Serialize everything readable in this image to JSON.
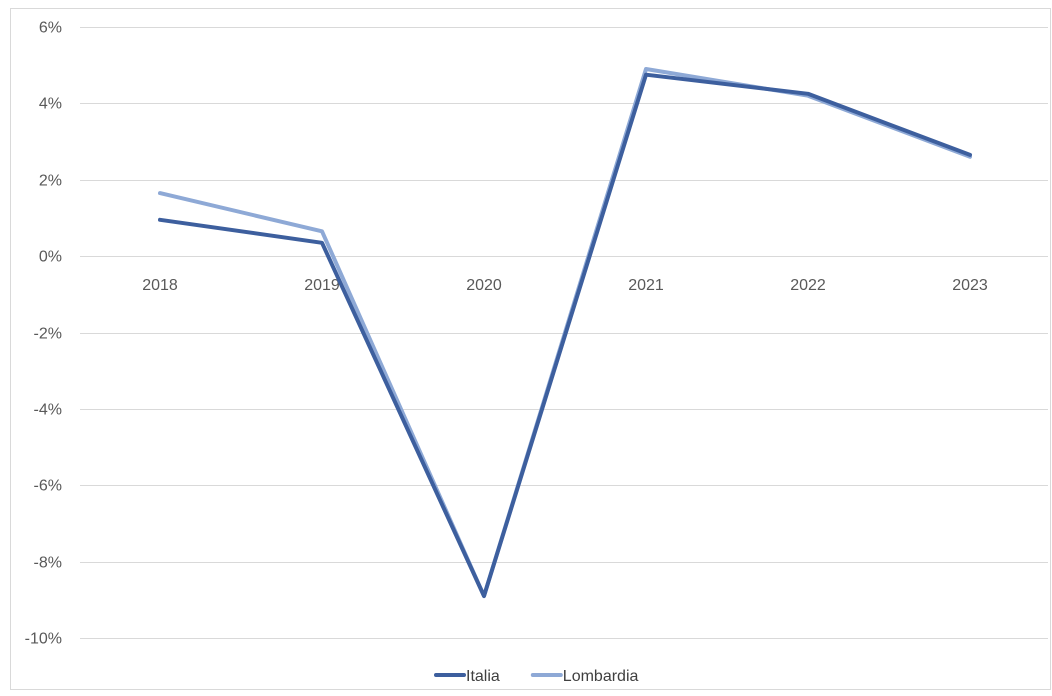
{
  "chart_data": {
    "type": "line",
    "x": [
      "2018",
      "2019",
      "2020",
      "2021",
      "2022",
      "2023"
    ],
    "series": [
      {
        "name": "Italia",
        "color": "#3d5f9e",
        "values": [
          0.95,
          0.35,
          -8.9,
          4.75,
          4.25,
          2.65
        ]
      },
      {
        "name": "Lombardia",
        "color": "#8ea9d6",
        "values": [
          1.65,
          0.65,
          -8.9,
          4.9,
          4.2,
          2.6
        ]
      }
    ],
    "y_ticks": [
      6,
      4,
      2,
      0,
      -2,
      -4,
      -6,
      -8,
      -10
    ],
    "y_tick_labels": [
      "6%",
      "4%",
      "2%",
      "0%",
      "-2%",
      "-4%",
      "-6%",
      "-8%",
      "-10%"
    ],
    "ylim": [
      -10,
      6
    ],
    "grid": true,
    "legend_position": "bottom-center",
    "title": "",
    "xlabel": "",
    "ylabel": ""
  }
}
